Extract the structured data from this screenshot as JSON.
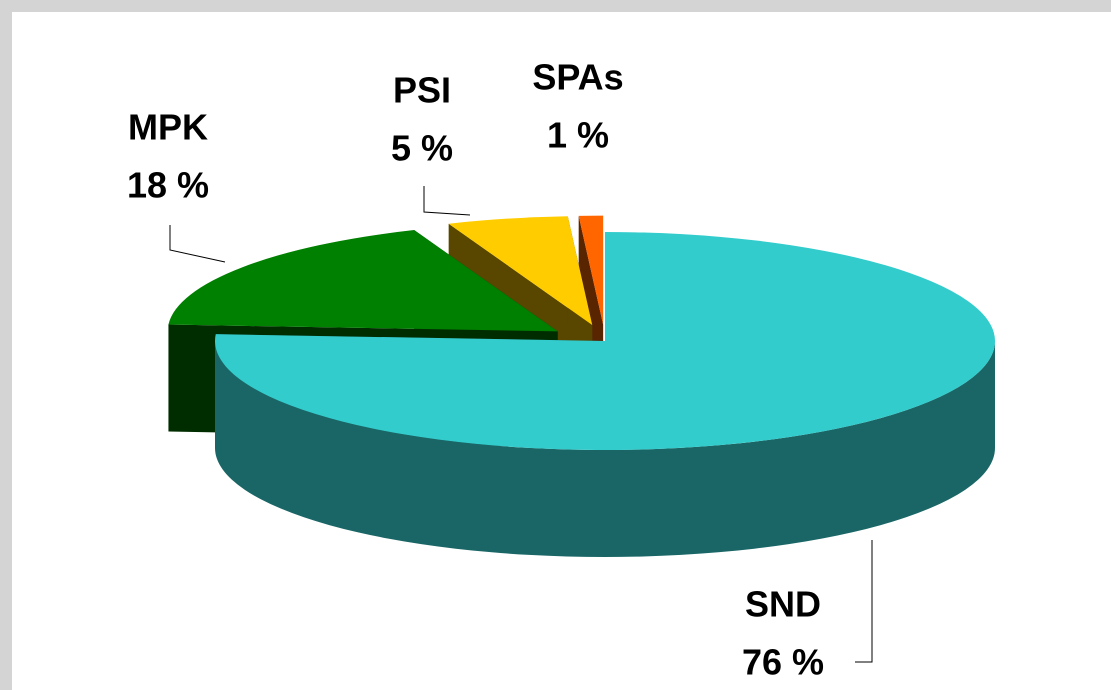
{
  "chart_data": {
    "type": "pie3d",
    "categories": [
      "SND",
      "MPK",
      "PSI",
      "SPAs"
    ],
    "values": [
      76,
      18,
      5,
      1
    ],
    "value_labels": [
      "76 %",
      "18 %",
      "5 %",
      "1 %"
    ],
    "colors": [
      "#33cccc",
      "#008000",
      "#ffcc00",
      "#ff6600"
    ]
  }
}
